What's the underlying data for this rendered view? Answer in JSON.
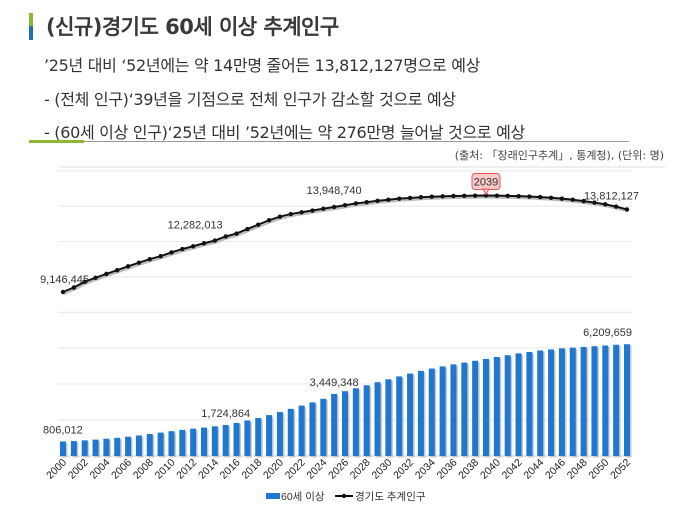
{
  "header": {
    "title": "(신규)경기도 60세 이상 추계인구",
    "bullets": [
      "’25년 대비 ‘52년에는 약 14만명 줄어든 13,812,127명으로 예상",
      "- (전체 인구)‘39년을 기점으로 전체 인구가 감소할 것으로 예상",
      "- (60세 이상 인구)‘25년 대비 ’52년에는 약 276만명 늘어날 것으로 예상"
    ],
    "source": "(출처: 「장래인구추계」, 통계청), (단위: 명)",
    "accent_colors": [
      "#8db833",
      "#1f6fb5"
    ]
  },
  "chart_data": {
    "type": "bar+line",
    "title": "",
    "xlabel": "",
    "ylabel": "",
    "categories": [
      2000,
      2001,
      2002,
      2003,
      2004,
      2005,
      2006,
      2007,
      2008,
      2009,
      2010,
      2011,
      2012,
      2013,
      2014,
      2015,
      2016,
      2017,
      2018,
      2019,
      2020,
      2021,
      2022,
      2023,
      2024,
      2025,
      2026,
      2027,
      2028,
      2029,
      2030,
      2031,
      2032,
      2033,
      2034,
      2035,
      2036,
      2037,
      2038,
      2039,
      2040,
      2041,
      2042,
      2043,
      2044,
      2045,
      2046,
      2047,
      2048,
      2049,
      2050,
      2051,
      2052
    ],
    "tick_labels": [
      "2000",
      "2002",
      "2004",
      "2006",
      "2008",
      "2010",
      "2012",
      "2014",
      "2016",
      "2018",
      "2020",
      "2022",
      "2024",
      "2026",
      "2028",
      "2030",
      "2032",
      "2034",
      "2036",
      "2038",
      "2040",
      "2042",
      "2044",
      "2046",
      "2048",
      "2050",
      "2052"
    ],
    "grid": true,
    "legend_position": "bottom",
    "series": [
      {
        "name": "60세 이상",
        "type": "bar",
        "color": "#1f77d0",
        "values": [
          806012,
          830000,
          870000,
          910000,
          960000,
          1010000,
          1070000,
          1140000,
          1220000,
          1300000,
          1380000,
          1450000,
          1520000,
          1580000,
          1650000,
          1724864,
          1840000,
          1970000,
          2110000,
          2270000,
          2440000,
          2620000,
          2800000,
          2980000,
          3180000,
          3449348,
          3600000,
          3760000,
          3930000,
          4100000,
          4260000,
          4420000,
          4580000,
          4730000,
          4860000,
          4980000,
          5090000,
          5190000,
          5290000,
          5390000,
          5500000,
          5600000,
          5700000,
          5780000,
          5860000,
          5920000,
          5980000,
          6020000,
          6060000,
          6100000,
          6140000,
          6180000,
          6209659
        ],
        "data_labels": [
          {
            "year": 2000,
            "text": "806,012"
          },
          {
            "year": 2015,
            "text": "1,724,864"
          },
          {
            "year": 2025,
            "text": "3,449,348"
          },
          {
            "year": 2052,
            "text": "6,209,659"
          }
        ]
      },
      {
        "name": "경기도 추계인구",
        "type": "line",
        "color": "#111111",
        "values": [
          9146445,
          9400000,
          9720000,
          9950000,
          10170000,
          10380000,
          10600000,
          10800000,
          11000000,
          11170000,
          11380000,
          11570000,
          11730000,
          11900000,
          12050000,
          12282013,
          12450000,
          12700000,
          12950000,
          13200000,
          13400000,
          13550000,
          13650000,
          13750000,
          13850000,
          13948740,
          14050000,
          14150000,
          14220000,
          14300000,
          14360000,
          14420000,
          14460000,
          14500000,
          14530000,
          14550000,
          14570000,
          14580000,
          14590000,
          14600000,
          14590000,
          14580000,
          14560000,
          14540000,
          14510000,
          14470000,
          14420000,
          14360000,
          14280000,
          14200000,
          14100000,
          13970000,
          13812127
        ],
        "data_labels": [
          {
            "year": 2000,
            "text": "9,146,445"
          },
          {
            "year": 2015,
            "text": "12,282,013"
          },
          {
            "year": 2025,
            "text": "13,948,740"
          },
          {
            "year": 2052,
            "text": "13,812,127"
          }
        ],
        "callout": {
          "year": 2039,
          "text": "2039",
          "fill": "#f9c9c9",
          "border": "#e05a5a"
        }
      }
    ]
  }
}
